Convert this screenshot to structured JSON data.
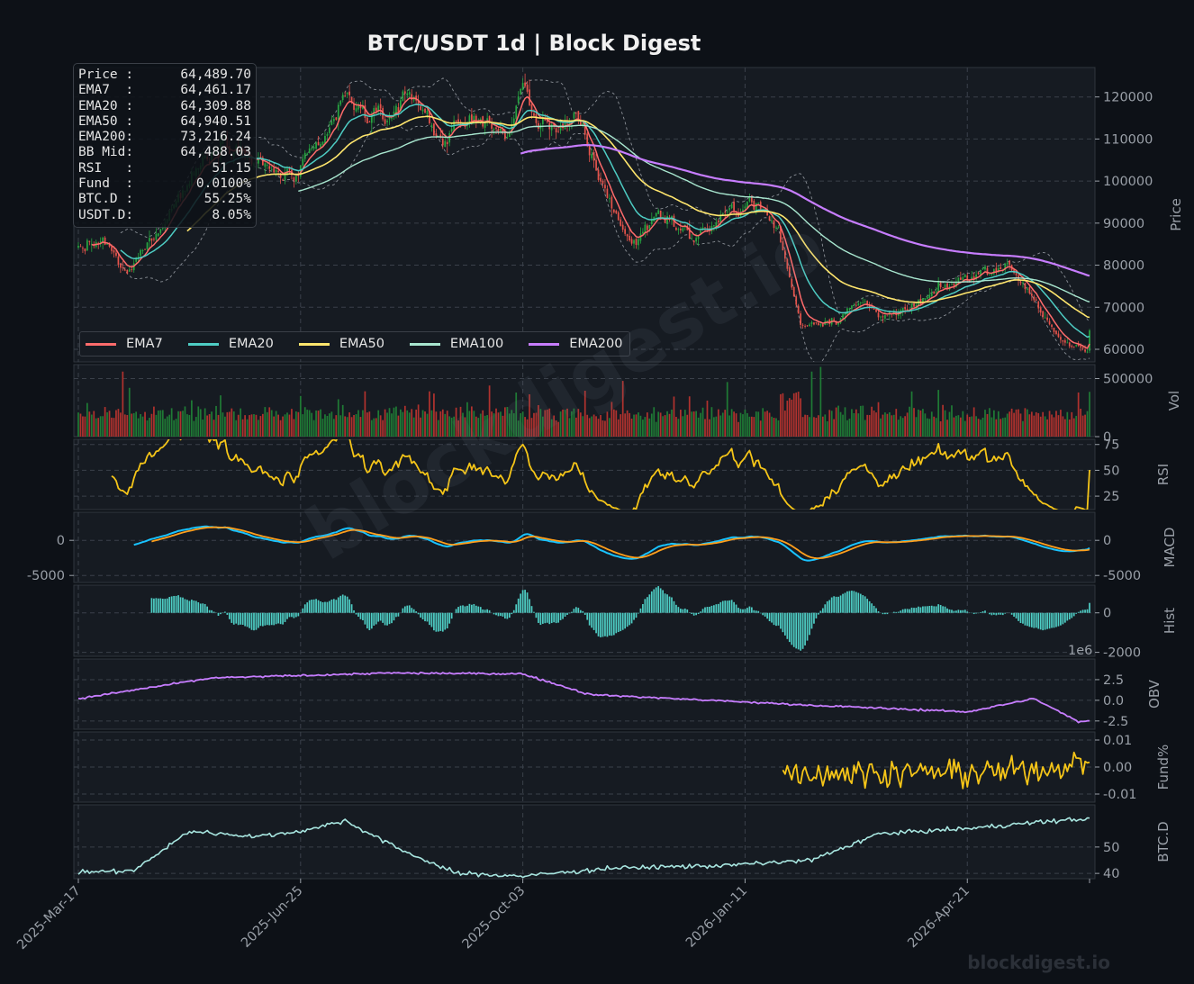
{
  "title": "BTC/USDT  1d  |  Block Digest",
  "brand": "blockdigest.io",
  "watermark": "blockdigest.io",
  "info": [
    {
      "label": "Price :",
      "value": "64,489.70"
    },
    {
      "label": "EMA7  :",
      "value": "64,461.17"
    },
    {
      "label": "EMA20 :",
      "value": "64,309.88"
    },
    {
      "label": "EMA50 :",
      "value": "64,940.51"
    },
    {
      "label": "EMA200:",
      "value": "73,216.24"
    },
    {
      "label": "BB Mid:",
      "value": "64,488.03"
    },
    {
      "label": "RSI   :",
      "value": "51.15"
    },
    {
      "label": "Fund  :",
      "value": "0.0100%"
    },
    {
      "label": "BTC.D :",
      "value": "55.25%"
    },
    {
      "label": "USDT.D:",
      "value": "8.05%"
    }
  ],
  "colors": {
    "background": "#0d1117",
    "panel": "#161b22",
    "grid": "#3a404a",
    "up": "#26a641",
    "down": "#e5534b",
    "ema7": "#ff6b6b",
    "ema20": "#4ecdc4",
    "ema50": "#ffe66d",
    "ema100": "#a8e6cf",
    "ema200": "#c77dff",
    "rsi": "#f5c518",
    "macd": "#19c3ff",
    "signal": "#ff9f1c",
    "hist": "#4ecdc4",
    "obv": "#c77dff",
    "fund": "#f5c518",
    "btcd": "#a8e6e0"
  },
  "chart_data": {
    "type": "candlestick-multi-panel",
    "x_axis": {
      "ticks": [
        "2025-Mar-17",
        "2025-Jun-25",
        "2025-Oct-03",
        "2026-Jan-11",
        "2026-Apr-21"
      ],
      "start": "2025-03-17",
      "end": "2026-06-15",
      "grid": true
    },
    "price_panel": {
      "ylabel": "Price",
      "ylim": [
        57000,
        127000
      ],
      "yticks": [
        "60000",
        "70000",
        "80000",
        "90000",
        "100000",
        "110000",
        "120000"
      ],
      "close_anchors": [
        [
          "2025-03-17",
          84000
        ],
        [
          "2025-03-28",
          85500
        ],
        [
          "2025-04-08",
          77500
        ],
        [
          "2025-04-22",
          89000
        ],
        [
          "2025-05-10",
          103500
        ],
        [
          "2025-05-22",
          111000
        ],
        [
          "2025-06-05",
          104000
        ],
        [
          "2025-06-22",
          100500
        ],
        [
          "2025-07-05",
          108500
        ],
        [
          "2025-07-14",
          119500
        ],
        [
          "2025-08-01",
          114000
        ],
        [
          "2025-08-13",
          121500
        ],
        [
          "2025-08-28",
          110000
        ],
        [
          "2025-09-15",
          116000
        ],
        [
          "2025-09-25",
          109500
        ],
        [
          "2025-10-03",
          122500
        ],
        [
          "2025-10-10",
          113000
        ],
        [
          "2025-10-27",
          114500
        ],
        [
          "2025-11-04",
          103500
        ],
        [
          "2025-11-21",
          84500
        ],
        [
          "2025-12-03",
          93000
        ],
        [
          "2025-12-18",
          86500
        ],
        [
          "2026-01-05",
          92500
        ],
        [
          "2026-01-14",
          96000
        ],
        [
          "2026-01-26",
          88000
        ],
        [
          "2026-02-05",
          66000
        ],
        [
          "2026-02-20",
          67500
        ],
        [
          "2026-03-05",
          71000
        ],
        [
          "2026-03-20",
          67500
        ],
        [
          "2026-04-06",
          73000
        ],
        [
          "2026-04-22",
          77500
        ],
        [
          "2026-05-08",
          80500
        ],
        [
          "2026-05-20",
          73500
        ],
        [
          "2026-06-01",
          61500
        ],
        [
          "2026-06-15",
          59500
        ],
        [
          "2026-07-01",
          63500
        ],
        [
          "2026-07-18",
          64489.7
        ]
      ],
      "series": [
        {
          "name": "EMA7"
        },
        {
          "name": "EMA20"
        },
        {
          "name": "EMA50"
        },
        {
          "name": "EMA100"
        },
        {
          "name": "EMA200"
        }
      ],
      "legend": "bottom-left",
      "info_box": "top-left"
    },
    "volume_panel": {
      "ylabel": "Vol",
      "yticks": [
        "0",
        "500000"
      ],
      "ylim": [
        0,
        620000
      ]
    },
    "rsi_panel": {
      "ylabel": "RSI",
      "yticks": [
        "25",
        "50",
        "75"
      ],
      "ylim": [
        12,
        80
      ]
    },
    "macd_panel": {
      "ylabel": "MACD",
      "yticks": [
        "-5000",
        "0"
      ],
      "left_yticks": [
        "-5000",
        "0"
      ],
      "ylim": [
        -6000,
        4000
      ]
    },
    "hist_panel": {
      "ylabel": "Hist",
      "yticks": [
        "-2000",
        "0"
      ],
      "ylim": [
        -2200,
        1400
      ]
    },
    "obv_panel": {
      "ylabel": "OBV",
      "yticks": [
        "-2.5",
        "0.0",
        "2.5"
      ],
      "scale_label": "1e6",
      "ylim": [
        -3.5,
        5
      ]
    },
    "fund_panel": {
      "ylabel": "Fund%",
      "yticks": [
        "-0.01",
        "0.00",
        "0.01"
      ],
      "ylim": [
        -0.013,
        0.013
      ]
    },
    "btcd_panel": {
      "ylabel": "BTC.D",
      "yticks": [
        "40",
        "50"
      ],
      "ylim": [
        38,
        66
      ]
    }
  }
}
